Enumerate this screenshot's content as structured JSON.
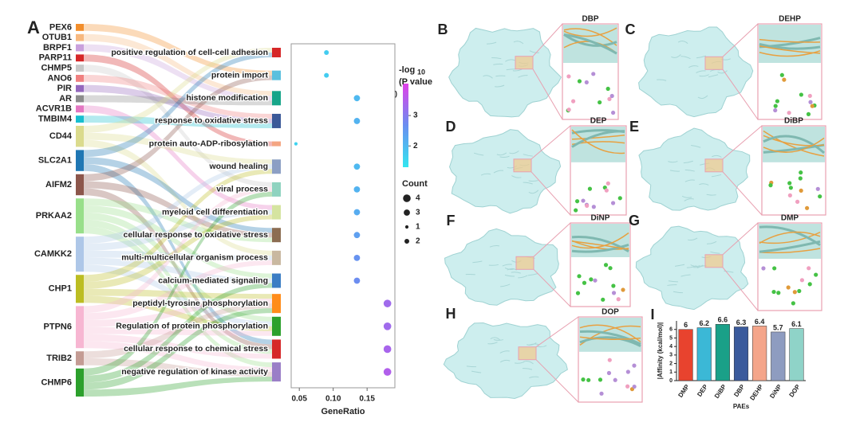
{
  "sankey": {
    "panel": "A",
    "genes": [
      {
        "name": "PEX6",
        "color": "#f28e2b"
      },
      {
        "name": "OTUB1",
        "color": "#f7b87f"
      },
      {
        "name": "BRPF1",
        "color": "#c9a0dc"
      },
      {
        "name": "PARP11",
        "color": "#d62728"
      },
      {
        "name": "CHMP5",
        "color": "#c7c7c7"
      },
      {
        "name": "ANO6",
        "color": "#f08080"
      },
      {
        "name": "PIR",
        "color": "#9467bd"
      },
      {
        "name": "AR",
        "color": "#8c8c8c"
      },
      {
        "name": "ACVR1B",
        "color": "#e377c2"
      },
      {
        "name": "TMBIM4",
        "color": "#17becf"
      },
      {
        "name": "CD44",
        "color": "#dbdb8d"
      },
      {
        "name": "SLC2A1",
        "color": "#1f77b4"
      },
      {
        "name": "AIFM2",
        "color": "#8c564b"
      },
      {
        "name": "PRKAA2",
        "color": "#98df8a"
      },
      {
        "name": "CAMKK2",
        "color": "#aec7e8"
      },
      {
        "name": "CHP1",
        "color": "#bcbd22"
      },
      {
        "name": "PTPN6",
        "color": "#f7b6d2"
      },
      {
        "name": "TRIB2",
        "color": "#c49c94"
      },
      {
        "name": "CHMP6",
        "color": "#2ca02c"
      }
    ],
    "term_colors": [
      "#d62728",
      "#5bc0de",
      "#17a589",
      "#3b5998",
      "#f4a582",
      "#8c9fc4",
      "#8fd3c0",
      "#d5e4a0",
      "#8c6d52",
      "#c9b8a0",
      "#3b7dc4",
      "#ff8c1a",
      "#2ca02c",
      "#d62728",
      "#9a7fc7"
    ],
    "links": [
      [
        0,
        1
      ],
      [
        1,
        2
      ],
      [
        2,
        2
      ],
      [
        3,
        4
      ],
      [
        4,
        6
      ],
      [
        5,
        3
      ],
      [
        6,
        3
      ],
      [
        7,
        2
      ],
      [
        8,
        7
      ],
      [
        9,
        3
      ],
      [
        10,
        0
      ],
      [
        10,
        5
      ],
      [
        10,
        9
      ],
      [
        11,
        0
      ],
      [
        11,
        8
      ],
      [
        11,
        13
      ],
      [
        12,
        1
      ],
      [
        12,
        8
      ],
      [
        12,
        13
      ],
      [
        13,
        8
      ],
      [
        13,
        10
      ],
      [
        13,
        12
      ],
      [
        13,
        13
      ],
      [
        13,
        14
      ],
      [
        14,
        5
      ],
      [
        14,
        7
      ],
      [
        14,
        9
      ],
      [
        14,
        10
      ],
      [
        14,
        12
      ],
      [
        15,
        5
      ],
      [
        15,
        7
      ],
      [
        15,
        11
      ],
      [
        15,
        12
      ],
      [
        16,
        6
      ],
      [
        16,
        9
      ],
      [
        16,
        11
      ],
      [
        16,
        12
      ],
      [
        16,
        13
      ],
      [
        16,
        14
      ],
      [
        17,
        11
      ],
      [
        17,
        14
      ],
      [
        18,
        6
      ],
      [
        18,
        10
      ],
      [
        18,
        11
      ],
      [
        18,
        14
      ]
    ]
  },
  "chart_data": [
    {
      "type": "scatter",
      "x_label": "GeneRatio",
      "categories": [
        "positive regulation of cell-cell adhesion",
        "protein import",
        "histone modification",
        "response to oxidative stress",
        "protein auto-ADP-ribosylation",
        "wound healing",
        "viral process",
        "myeloid cell differentiation",
        "cellular response to oxidative stress",
        "multi-multicellular organism process",
        "calcium-mediated signaling",
        "peptidyl-tyrosine phosphorylation",
        "Regulation of protein phosphorylation",
        "cellular response to chemical stress",
        "negative regulation of kinase activity"
      ],
      "x": [
        0.09,
        0.09,
        0.135,
        0.135,
        0.045,
        0.135,
        0.135,
        0.135,
        0.135,
        0.135,
        0.135,
        0.18,
        0.18,
        0.18,
        0.18
      ],
      "count": [
        2,
        2,
        3,
        3,
        1,
        3,
        3,
        3,
        3,
        3,
        3,
        4,
        4,
        4,
        4
      ],
      "neg_log10_p": [
        1.7,
        1.7,
        2.0,
        2.1,
        1.6,
        2.0,
        2.1,
        2.2,
        2.4,
        2.6,
        2.7,
        3.3,
        3.3,
        3.4,
        3.5
      ],
      "xlim": [
        0.038,
        0.191
      ],
      "xticks": [
        {
          "value": 0.05,
          "label": "0.05"
        },
        {
          "value": 0.1,
          "label": "0.10"
        },
        {
          "value": 0.15,
          "label": "0.15"
        }
      ],
      "color_title": [
        "-log",
        "10",
        "(P value",
        ")"
      ],
      "clim": [
        1.3,
        4.05
      ],
      "cticks": [
        3,
        2
      ],
      "size_legend": {
        "title": "Count",
        "values": [
          4,
          3,
          1,
          2
        ]
      }
    },
    {
      "type": "bar",
      "panel": "I",
      "x_label": "PAEs",
      "y_label": "|Affinity (kcal/mol)|",
      "categories": [
        "DMP",
        "DEP",
        "DiBP",
        "DBP",
        "DEHP",
        "DiNP",
        "DOP"
      ],
      "values": [
        6,
        6.2,
        6.6,
        6.3,
        6.4,
        5.7,
        6.1
      ],
      "colors": [
        "#e8432e",
        "#3bb8d6",
        "#1aa088",
        "#3a5a9c",
        "#f4a58a",
        "#8e9cc0",
        "#8fd3c8"
      ],
      "ylim": [
        0,
        7
      ],
      "yticks": [
        0,
        1,
        2,
        3,
        4,
        5,
        6
      ]
    }
  ],
  "docking": [
    {
      "label": "B",
      "ligand": "DBP"
    },
    {
      "label": "C",
      "ligand": "DEHP"
    },
    {
      "label": "D",
      "ligand": "DEP"
    },
    {
      "label": "E",
      "ligand": "DiBP"
    },
    {
      "label": "F",
      "ligand": "DiNP"
    },
    {
      "label": "G",
      "ligand": "DMP"
    },
    {
      "label": "H",
      "ligand": "DOP"
    }
  ]
}
